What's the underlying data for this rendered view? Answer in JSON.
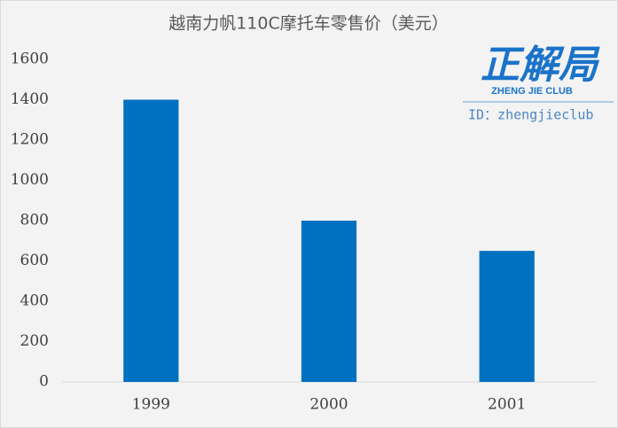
{
  "chart_data": {
    "type": "bar",
    "title": "越南力帆110C摩托车零售价（美元）",
    "categories": [
      "1999",
      "2000",
      "2001"
    ],
    "values": [
      1400,
      800,
      650
    ],
    "color": "#0070c0",
    "ylim": [
      0,
      1600
    ],
    "yticks": [
      0,
      200,
      400,
      600,
      800,
      1000,
      1200,
      1400,
      1600
    ],
    "grid": false
  },
  "watermark": {
    "logo": "正解局",
    "subtitle": "ZHENG JIE CLUB",
    "id": "ID：zhengjieclub"
  }
}
